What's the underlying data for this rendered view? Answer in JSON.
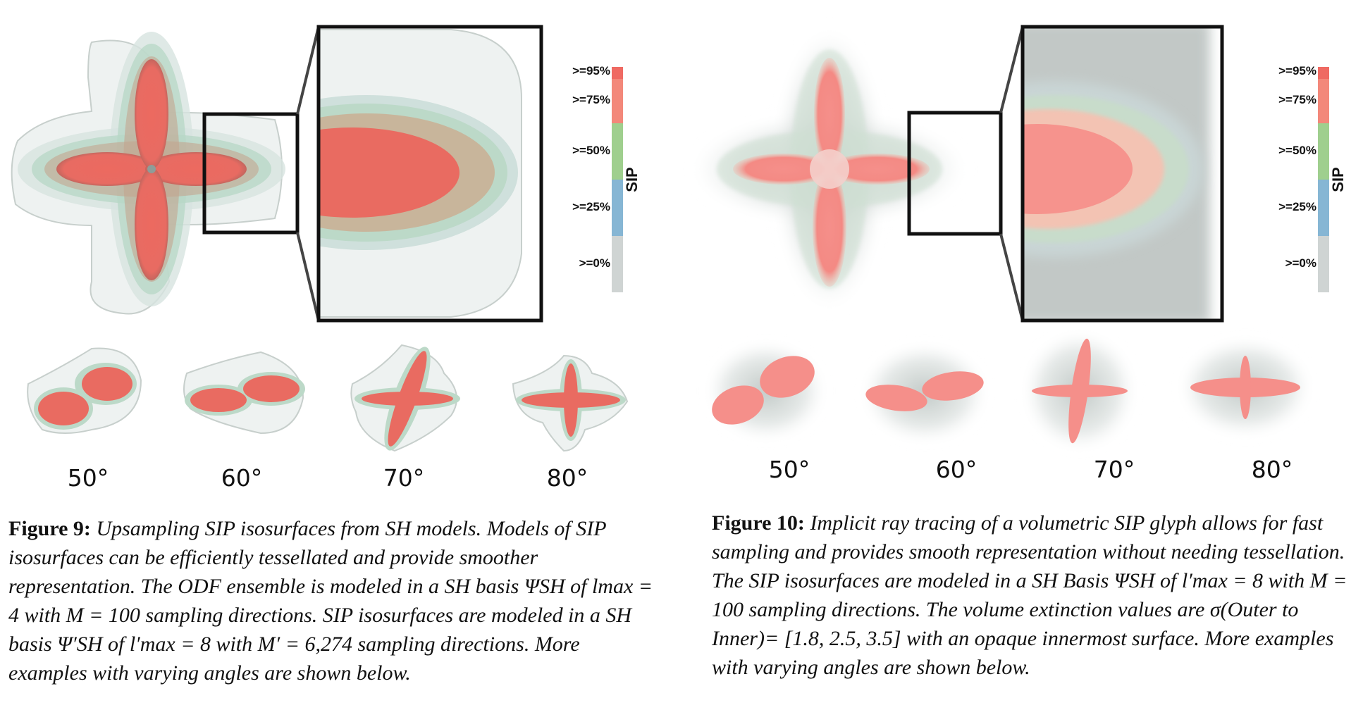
{
  "colors": {
    "sip_95": "#ef6a63",
    "sip_75": "#f3887a",
    "sip_50": "#9fcf8e",
    "sip_25": "#86b6d4",
    "sip_0": "#cfd4d3",
    "outer_surface": "#eef2f1",
    "frame": "#111111"
  },
  "figure9": {
    "colorbar": {
      "title": "SIP",
      "labels": [
        ">=95%",
        ">=75%",
        ">=50%",
        ">=25%",
        ">=0%"
      ]
    },
    "angle_labels": [
      "50°",
      "60°",
      "70°",
      "80°"
    ],
    "caption_label": "Figure 9:",
    "caption_text": "Upsampling SIP isosurfaces from SH models. Models of SIP isosurfaces can be efficiently tessellated and provide smoother representation. The ODF ensemble is modeled in a SH basis ΨSH of lmax = 4 with M = 100 sampling directions. SIP isosurfaces are modeled in a SH basis Ψ′SH of l′max = 8 with M′ = 6,274 sampling directions. More examples with varying angles are shown below."
  },
  "figure10": {
    "colorbar": {
      "title": "SIP",
      "labels": [
        ">=95%",
        ">=75%",
        ">=50%",
        ">=25%",
        ">=0%"
      ]
    },
    "angle_labels": [
      "50°",
      "60°",
      "70°",
      "80°"
    ],
    "caption_label": "Figure 10:",
    "caption_text": "Implicit ray tracing of a volumetric SIP glyph allows for fast sampling and provides smooth representation without needing tessellation. The SIP isosurfaces are modeled in a SH Basis ΨSH of l′max = 8 with M = 100 sampling directions. The volume extinction values are σ(Outer to Inner)= [1.8, 2.5, 3.5] with an opaque innermost surface. More examples with varying angles are shown below."
  }
}
